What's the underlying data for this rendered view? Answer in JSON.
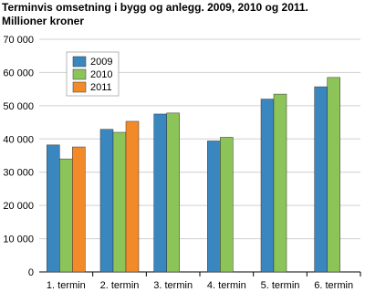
{
  "chart_data": {
    "type": "bar",
    "title": "Terminvis omsetning i bygg og anlegg. 2009, 2010 og 2011.",
    "subtitle": "Millioner kroner",
    "categories": [
      "1. termin",
      "2. termin",
      "3. termin",
      "4. termin",
      "5. termin",
      "6. termin"
    ],
    "series": [
      {
        "name": "2009",
        "color": "#3a87c0",
        "values": [
          38200,
          42900,
          47500,
          39400,
          52000,
          55700
        ]
      },
      {
        "name": "2010",
        "color": "#8dc45a",
        "values": [
          34000,
          42000,
          47800,
          40500,
          53500,
          58500
        ]
      },
      {
        "name": "2011",
        "color": "#f28a2a",
        "values": [
          37600,
          45300,
          null,
          null,
          null,
          null
        ]
      }
    ],
    "ylim": [
      0,
      70000
    ],
    "yticks": [
      0,
      {
        "value": 10000,
        "label": "10 000"
      },
      {
        "value": 20000,
        "label": "20 000"
      },
      {
        "value": 30000,
        "label": "30 000"
      },
      {
        "value": 40000,
        "label": "40 000"
      },
      {
        "value": 50000,
        "label": "50 000"
      },
      {
        "value": 60000,
        "label": "60 000"
      },
      {
        "value": 70000,
        "label": "70 000"
      }
    ],
    "grid": true
  }
}
